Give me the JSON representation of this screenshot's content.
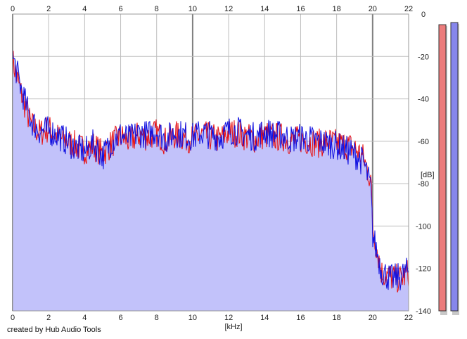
{
  "credit": "created by Hub Audio Tools",
  "chart_data": {
    "type": "area",
    "title": "",
    "xlabel": "[kHz]",
    "ylabel": "[dB]",
    "xlim": [
      0,
      22
    ],
    "ylim": [
      -140,
      0
    ],
    "x_ticks": [
      "0",
      "2",
      "4",
      "6",
      "8",
      "10",
      "12",
      "14",
      "16",
      "18",
      "20",
      "22"
    ],
    "y_ticks": [
      "0",
      "-20",
      "-40",
      "-60",
      "-80",
      "-100",
      "-120",
      "-140"
    ],
    "grid": true,
    "x_step": 0.5,
    "series": [
      {
        "color": "#e81010",
        "x": [
          0,
          0.5,
          1,
          1.5,
          2,
          2.5,
          3,
          3.5,
          4,
          4.5,
          5,
          5.5,
          6,
          6.5,
          7,
          7.5,
          8,
          8.5,
          9,
          9.5,
          10,
          10.5,
          11,
          11.5,
          12,
          12.5,
          13,
          13.5,
          14,
          14.5,
          15,
          15.5,
          16,
          16.5,
          17,
          17.5,
          18,
          18.5,
          19,
          19.5,
          19.9,
          20.0,
          20.5,
          21,
          21.5,
          22
        ],
        "values": [
          -22,
          -38,
          -52,
          -56,
          -54,
          -58,
          -60,
          -62,
          -64,
          -62,
          -66,
          -61,
          -58,
          -60,
          -57,
          -58,
          -56,
          -60,
          -57,
          -58,
          -59,
          -57,
          -58,
          -59,
          -56,
          -56,
          -58,
          -59,
          -57,
          -58,
          -58,
          -60,
          -59,
          -60,
          -61,
          -60,
          -61,
          -62,
          -63,
          -68,
          -78,
          -100,
          -122,
          -124,
          -125,
          -122
        ]
      },
      {
        "color": "#1010e0",
        "x": [
          0,
          0.5,
          1,
          1.5,
          2,
          2.5,
          3,
          3.5,
          4,
          4.5,
          5,
          5.5,
          6,
          6.5,
          7,
          7.5,
          8,
          8.5,
          9,
          9.5,
          10,
          10.5,
          11,
          11.5,
          12,
          12.5,
          13,
          13.5,
          14,
          14.5,
          15,
          15.5,
          16,
          16.5,
          17,
          17.5,
          18,
          18.5,
          19,
          19.5,
          19.9,
          20.0,
          20.5,
          21,
          21.5,
          22
        ],
        "values": [
          -20,
          -36,
          -50,
          -55,
          -55,
          -57,
          -60,
          -63,
          -65,
          -61,
          -67,
          -60,
          -57,
          -59,
          -56,
          -57,
          -55,
          -59,
          -56,
          -57,
          -58,
          -56,
          -57,
          -58,
          -55,
          -55,
          -57,
          -58,
          -55,
          -57,
          -57,
          -59,
          -58,
          -59,
          -60,
          -61,
          -62,
          -64,
          -66,
          -70,
          -82,
          -104,
          -121,
          -125,
          -124,
          -121
        ]
      }
    ]
  },
  "meters": {
    "left_channel": {
      "color": "#ec7c7c",
      "level_db": -5
    },
    "right_channel": {
      "color": "#8686ec",
      "level_db": -4
    }
  }
}
